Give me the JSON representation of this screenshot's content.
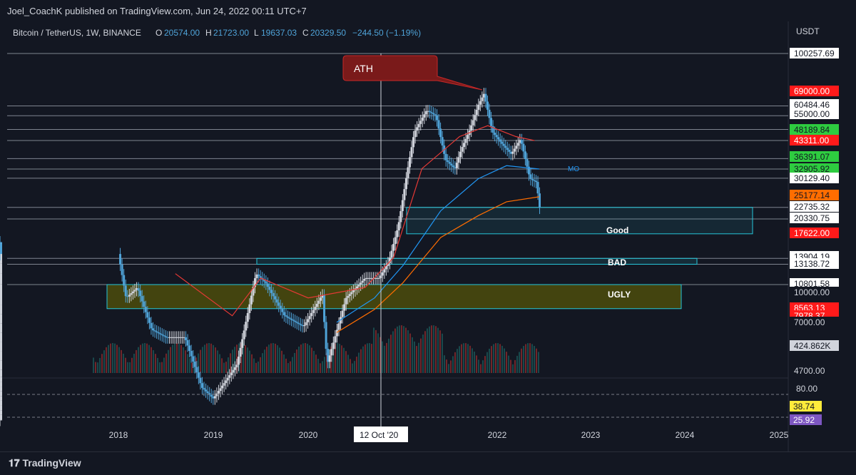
{
  "header": {
    "publisher": "Joel_CoachK published on TradingView.com, Jun 24, 2022 00:11 UTC+7"
  },
  "symbol": {
    "name": "Bitcoin / TetherUS, 1W, BINANCE",
    "o_label": "O",
    "o_value": "20574.00",
    "h_label": "H",
    "h_value": "21723.00",
    "l_label": "L",
    "l_value": "19637.03",
    "c_label": "C",
    "c_value": "20329.50",
    "change": "−244.50 (−1.19%)"
  },
  "currency": "USDT",
  "footer": {
    "brand": "TradingView"
  },
  "crosshair_date": "12 Oct '20",
  "annotations": {
    "ath": "ATH",
    "good": "Good",
    "bad": "BAD",
    "ugly": "UGLY",
    "mo": "MO"
  },
  "chart_data": {
    "type": "line",
    "title": "",
    "x_axis": {
      "ticks": [
        "2018",
        "2019",
        "2020",
        "2021",
        "2022",
        "2023",
        "2024",
        "2025"
      ],
      "scale": "time"
    },
    "y_axis": {
      "scale": "log",
      "currency": "USDT",
      "range": [
        4700,
        100257.69
      ]
    },
    "price_labels": [
      {
        "value": "100257.69",
        "bg": "#ffffff",
        "fg": "#131722"
      },
      {
        "value": "69000.00",
        "bg": "#ff1a1a",
        "fg": "#ffffff"
      },
      {
        "value": "60484.46",
        "bg": "#ffffff",
        "fg": "#131722"
      },
      {
        "value": "55000.00",
        "bg": "#ffffff",
        "fg": "#131722"
      },
      {
        "value": "48189.84",
        "bg": "#2ecc40",
        "fg": "#131722"
      },
      {
        "value": "43311.00",
        "bg": "#ff1a1a",
        "fg": "#ffffff"
      },
      {
        "value": "36391.07",
        "bg": "#2ecc40",
        "fg": "#131722"
      },
      {
        "value": "32905.92",
        "bg": "#2ecc40",
        "fg": "#131722"
      },
      {
        "value": "30129.40",
        "bg": "#ffffff",
        "fg": "#131722"
      },
      {
        "value": "25177.14",
        "bg": "#ff6d00",
        "fg": "#131722"
      },
      {
        "value": "22735.32",
        "bg": "#ffffff",
        "fg": "#131722"
      },
      {
        "value": "20330.75",
        "bg": "#ffffff",
        "fg": "#131722"
      },
      {
        "value": "17622.00",
        "bg": "#ff1a1a",
        "fg": "#ffffff"
      },
      {
        "value": "13904.19",
        "bg": "#ffffff",
        "fg": "#131722"
      },
      {
        "value": "13138.72",
        "bg": "#ffffff",
        "fg": "#131722"
      },
      {
        "value": "10801.58",
        "bg": "#ffffff",
        "fg": "#131722"
      },
      {
        "value": "10000.00",
        "bg": "#131722",
        "fg": "#d1d4dc"
      },
      {
        "value": "8563.13",
        "bg": "#ff1a1a",
        "fg": "#ffffff"
      },
      {
        "value": "7978.37",
        "bg": "#ff1a1a",
        "fg": "#ffffff"
      },
      {
        "value": "7000.00",
        "bg": "#131722",
        "fg": "#d1d4dc"
      },
      {
        "value": "424.862K",
        "bg": "#d1d4dc",
        "fg": "#131722"
      },
      {
        "value": "4700.00",
        "bg": "#131722",
        "fg": "#d1d4dc"
      }
    ],
    "horizontal_levels": [
      100257.69,
      60484.46,
      55000,
      48189.84,
      43311,
      36391.07,
      32905.92,
      30129.4,
      22735.32,
      20330.75,
      13904.19,
      13138.72,
      10801.58
    ],
    "zones": [
      {
        "name": "Good",
        "low": 17622,
        "high": 22735.32
      },
      {
        "name": "BAD",
        "low": 13138.72,
        "high": 13904.19
      },
      {
        "name": "UGLY",
        "low": 8563.13,
        "high": 10801.58
      }
    ],
    "rsi_panel": {
      "ticks": [
        "80.00"
      ],
      "labels": [
        {
          "value": "38.74",
          "bg": "#ffeb3b",
          "fg": "#131722"
        },
        {
          "value": "25.92",
          "bg": "#7e57c2",
          "fg": "#ffffff"
        }
      ]
    }
  },
  "colors": {
    "background": "#131722",
    "candle_up": "#d1d4dc",
    "candle_down": "#4fa3d8",
    "rsi": "#7e57c2",
    "rsi_ma": "#ffeb3b",
    "ema_orange": "#ff6d00",
    "ema_blue": "#2196f3",
    "kijun_red": "#e53935",
    "zone_cyan": "#26c6da",
    "zone_ugly_fill": "#6b6a00"
  }
}
